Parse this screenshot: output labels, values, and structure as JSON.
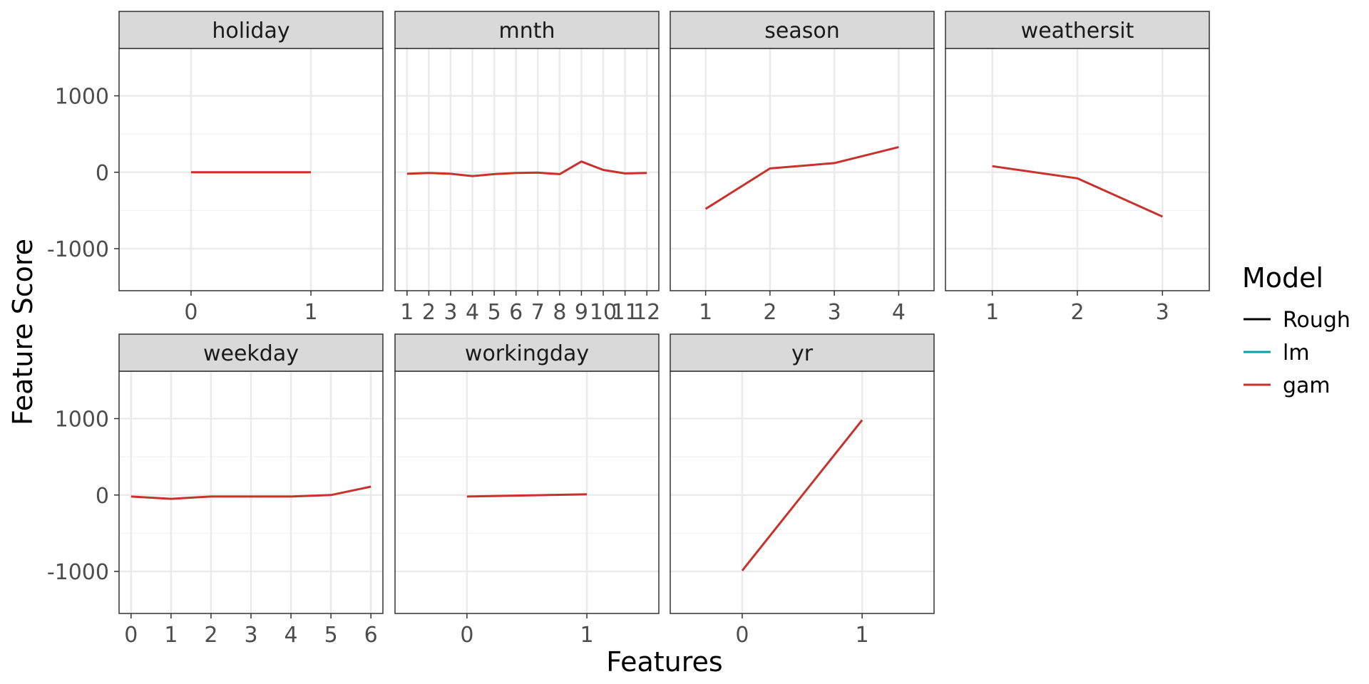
{
  "chart_data": {
    "type": "line",
    "title": "",
    "xlabel": "Features",
    "ylabel": "Feature Score",
    "ylim": [
      -1550,
      1620
    ],
    "y_ticks": [
      -1000,
      0,
      1000
    ],
    "y_tick_labels": [
      "-1000",
      "0",
      "1000"
    ],
    "grid": true,
    "legend": {
      "title": "Model",
      "position": "right",
      "entries": [
        {
          "name": "Rough",
          "color": "#000000"
        },
        {
          "name": "lm",
          "color": "#00a4a6"
        },
        {
          "name": "gam",
          "color": "#c8312c"
        }
      ]
    },
    "panels": [
      {
        "name": "holiday",
        "xlim": [
          -0.6,
          1.6
        ],
        "x_ticks": [
          0,
          1
        ],
        "x_tick_labels": [
          "0",
          "1"
        ],
        "series": [
          {
            "name": "gam",
            "x": [
              0,
              1
            ],
            "y": [
              0,
              0
            ]
          }
        ]
      },
      {
        "name": "mnth",
        "xlim": [
          0.45,
          12.55
        ],
        "x_ticks": [
          1,
          2,
          3,
          4,
          5,
          6,
          7,
          8,
          9,
          10,
          11,
          12
        ],
        "x_tick_labels": [
          "1",
          "2",
          "3",
          "4",
          "5",
          "6",
          "7",
          "8",
          "9",
          "10",
          "11",
          "12"
        ],
        "series": [
          {
            "name": "gam",
            "x": [
              1,
              2,
              3,
              4,
              5,
              6,
              7,
              8,
              9,
              10,
              11,
              12
            ],
            "y": [
              -20,
              -10,
              -20,
              -50,
              -25,
              -10,
              -5,
              -25,
              140,
              30,
              -15,
              -10
            ]
          }
        ]
      },
      {
        "name": "season",
        "xlim": [
          0.45,
          4.55
        ],
        "x_ticks": [
          1,
          2,
          3,
          4
        ],
        "x_tick_labels": [
          "1",
          "2",
          "3",
          "4"
        ],
        "series": [
          {
            "name": "gam",
            "x": [
              1,
              2,
              3,
              4
            ],
            "y": [
              -480,
              50,
              120,
              330
            ]
          }
        ]
      },
      {
        "name": "weathersit",
        "xlim": [
          0.45,
          3.55
        ],
        "x_ticks": [
          1,
          2,
          3
        ],
        "x_tick_labels": [
          "1",
          "2",
          "3"
        ],
        "series": [
          {
            "name": "gam",
            "x": [
              1,
              2,
              3
            ],
            "y": [
              80,
              -80,
              -580
            ]
          }
        ]
      },
      {
        "name": "weekday",
        "xlim": [
          -0.3,
          6.3
        ],
        "x_ticks": [
          0,
          1,
          2,
          3,
          4,
          5,
          6
        ],
        "x_tick_labels": [
          "0",
          "1",
          "2",
          "3",
          "4",
          "5",
          "6"
        ],
        "series": [
          {
            "name": "gam",
            "x": [
              0,
              1,
              2,
              3,
              4,
              5,
              6
            ],
            "y": [
              -20,
              -50,
              -20,
              -20,
              -20,
              0,
              110
            ]
          }
        ]
      },
      {
        "name": "workingday",
        "xlim": [
          -0.6,
          1.6
        ],
        "x_ticks": [
          0,
          1
        ],
        "x_tick_labels": [
          "0",
          "1"
        ],
        "series": [
          {
            "name": "gam",
            "x": [
              0,
              1
            ],
            "y": [
              -20,
              10
            ]
          }
        ]
      },
      {
        "name": "yr",
        "xlim": [
          -0.6,
          1.6
        ],
        "x_ticks": [
          0,
          1
        ],
        "x_tick_labels": [
          "0",
          "1"
        ],
        "series": [
          {
            "name": "gam",
            "x": [
              0,
              1
            ],
            "y": [
              -990,
              980
            ]
          }
        ]
      }
    ]
  }
}
